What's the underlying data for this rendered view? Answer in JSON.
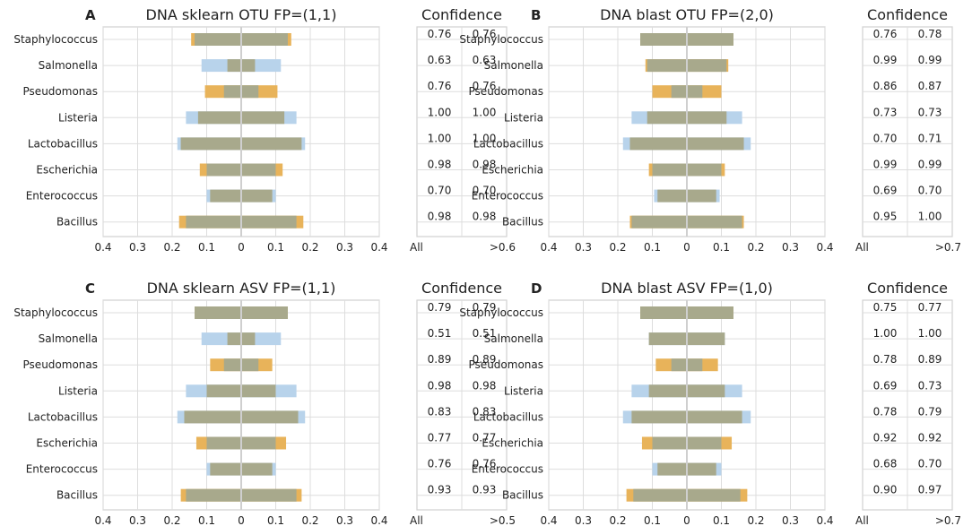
{
  "figure": {
    "background": "#ffffff"
  },
  "colors": {
    "orange": "#E8B35A",
    "blue": "#B8D3EB",
    "olive": "#A8A98C"
  },
  "chart_data": [
    {
      "type": "bar",
      "panel": "A",
      "title": "DNA sklearn OTU FP=(1,1)",
      "categories": [
        "Staphylococcus",
        "Salmonella",
        "Pseudomonas",
        "Listeria",
        "Lactobacillus",
        "Escherichia",
        "Enterococcus",
        "Bacillus"
      ],
      "xlim": [
        -0.4,
        0.4
      ],
      "xticks": [
        "0.4",
        "0.3",
        "0.2",
        "0.1",
        "0",
        "0.1",
        "0.2",
        "0.3",
        "0.4"
      ],
      "series": [
        {
          "name": "orange",
          "values": [
            0.145,
            0.0,
            0.105,
            0.0,
            0.0,
            0.12,
            0.0,
            0.18
          ]
        },
        {
          "name": "blue",
          "values": [
            0.0,
            0.115,
            0.0,
            0.16,
            0.185,
            0.0,
            0.1,
            0.0
          ]
        },
        {
          "name": "olive",
          "values": [
            0.135,
            0.04,
            0.05,
            0.125,
            0.175,
            0.1,
            0.09,
            0.16
          ]
        }
      ],
      "confidence": {
        "title": "Confidence",
        "xlabel_left": "All",
        "xlabel_right": ">0.6",
        "all": [
          "0.76",
          "0.63",
          "0.76",
          "1.00",
          "1.00",
          "0.98",
          "0.70",
          "0.98"
        ],
        "threshold": [
          "0.76",
          "0.63",
          "0.76",
          "1.00",
          "1.00",
          "0.98",
          "0.70",
          "0.98"
        ]
      }
    },
    {
      "type": "bar",
      "panel": "B",
      "title": "DNA blast OTU FP=(2,0)",
      "categories": [
        "Staphylococcus",
        "Salmonella",
        "Pseudomonas",
        "Listeria",
        "Lactobacillus",
        "Escherichia",
        "Enterococcus",
        "Bacillus"
      ],
      "xlim": [
        -0.4,
        0.4
      ],
      "xticks": [
        "0.4",
        "0.3",
        "0.2",
        "0.1",
        "0",
        "0.1",
        "0.2",
        "0.3",
        "0.4"
      ],
      "series": [
        {
          "name": "orange",
          "values": [
            0.135,
            0.12,
            0.1,
            0.0,
            0.0,
            0.11,
            0.0,
            0.165
          ]
        },
        {
          "name": "blue",
          "values": [
            0.0,
            0.0,
            0.0,
            0.16,
            0.185,
            0.0,
            0.095,
            0.0
          ]
        },
        {
          "name": "olive",
          "values": [
            0.135,
            0.115,
            0.045,
            0.115,
            0.165,
            0.1,
            0.085,
            0.16
          ]
        }
      ],
      "confidence": {
        "title": "Confidence",
        "xlabel_left": "All",
        "xlabel_right": ">0.7",
        "all": [
          "0.76",
          "0.99",
          "0.86",
          "0.73",
          "0.70",
          "0.99",
          "0.69",
          "0.95"
        ],
        "threshold": [
          "0.78",
          "0.99",
          "0.87",
          "0.73",
          "0.71",
          "0.99",
          "0.70",
          "1.00"
        ]
      }
    },
    {
      "type": "bar",
      "panel": "C",
      "title": "DNA sklearn ASV FP=(1,1)",
      "categories": [
        "Staphylococcus",
        "Salmonella",
        "Pseudomonas",
        "Listeria",
        "Lactobacillus",
        "Escherichia",
        "Enterococcus",
        "Bacillus"
      ],
      "xlim": [
        -0.4,
        0.4
      ],
      "xticks": [
        "0.4",
        "0.3",
        "0.2",
        "0.1",
        "0",
        "0.1",
        "0.2",
        "0.3",
        "0.4"
      ],
      "series": [
        {
          "name": "orange",
          "values": [
            0.135,
            0.0,
            0.09,
            0.0,
            0.0,
            0.13,
            0.0,
            0.175
          ]
        },
        {
          "name": "blue",
          "values": [
            0.0,
            0.115,
            0.0,
            0.16,
            0.185,
            0.0,
            0.1,
            0.0
          ]
        },
        {
          "name": "olive",
          "values": [
            0.135,
            0.04,
            0.05,
            0.1,
            0.165,
            0.1,
            0.09,
            0.16
          ]
        }
      ],
      "confidence": {
        "title": "Confidence",
        "xlabel_left": "All",
        "xlabel_right": ">0.5",
        "all": [
          "0.79",
          "0.51",
          "0.89",
          "0.98",
          "0.83",
          "0.77",
          "0.76",
          "0.93"
        ],
        "threshold": [
          "0.79",
          "0.51",
          "0.89",
          "0.98",
          "0.83",
          "0.77",
          "0.76",
          "0.93"
        ]
      }
    },
    {
      "type": "bar",
      "panel": "D",
      "title": "DNA blast ASV FP=(1,0)",
      "categories": [
        "Staphylococcus",
        "Salmonella",
        "Pseudomonas",
        "Listeria",
        "Lactobacillus",
        "Escherichia",
        "Enterococcus",
        "Bacillus"
      ],
      "xlim": [
        -0.4,
        0.4
      ],
      "xticks": [
        "0.4",
        "0.3",
        "0.2",
        "0.1",
        "0",
        "0.1",
        "0.2",
        "0.3",
        "0.4"
      ],
      "series": [
        {
          "name": "orange",
          "values": [
            0.135,
            0.0,
            0.09,
            0.0,
            0.0,
            0.13,
            0.0,
            0.175
          ]
        },
        {
          "name": "blue",
          "values": [
            0.0,
            0.11,
            0.0,
            0.16,
            0.185,
            0.0,
            0.1,
            0.0
          ]
        },
        {
          "name": "olive",
          "values": [
            0.135,
            0.11,
            0.045,
            0.11,
            0.16,
            0.1,
            0.085,
            0.155
          ]
        }
      ],
      "confidence": {
        "title": "Confidence",
        "xlabel_left": "All",
        "xlabel_right": ">0.7",
        "all": [
          "0.75",
          "1.00",
          "0.78",
          "0.69",
          "0.78",
          "0.92",
          "0.68",
          "0.90"
        ],
        "threshold": [
          "0.77",
          "1.00",
          "0.89",
          "0.73",
          "0.79",
          "0.92",
          "0.70",
          "0.97"
        ]
      }
    }
  ]
}
